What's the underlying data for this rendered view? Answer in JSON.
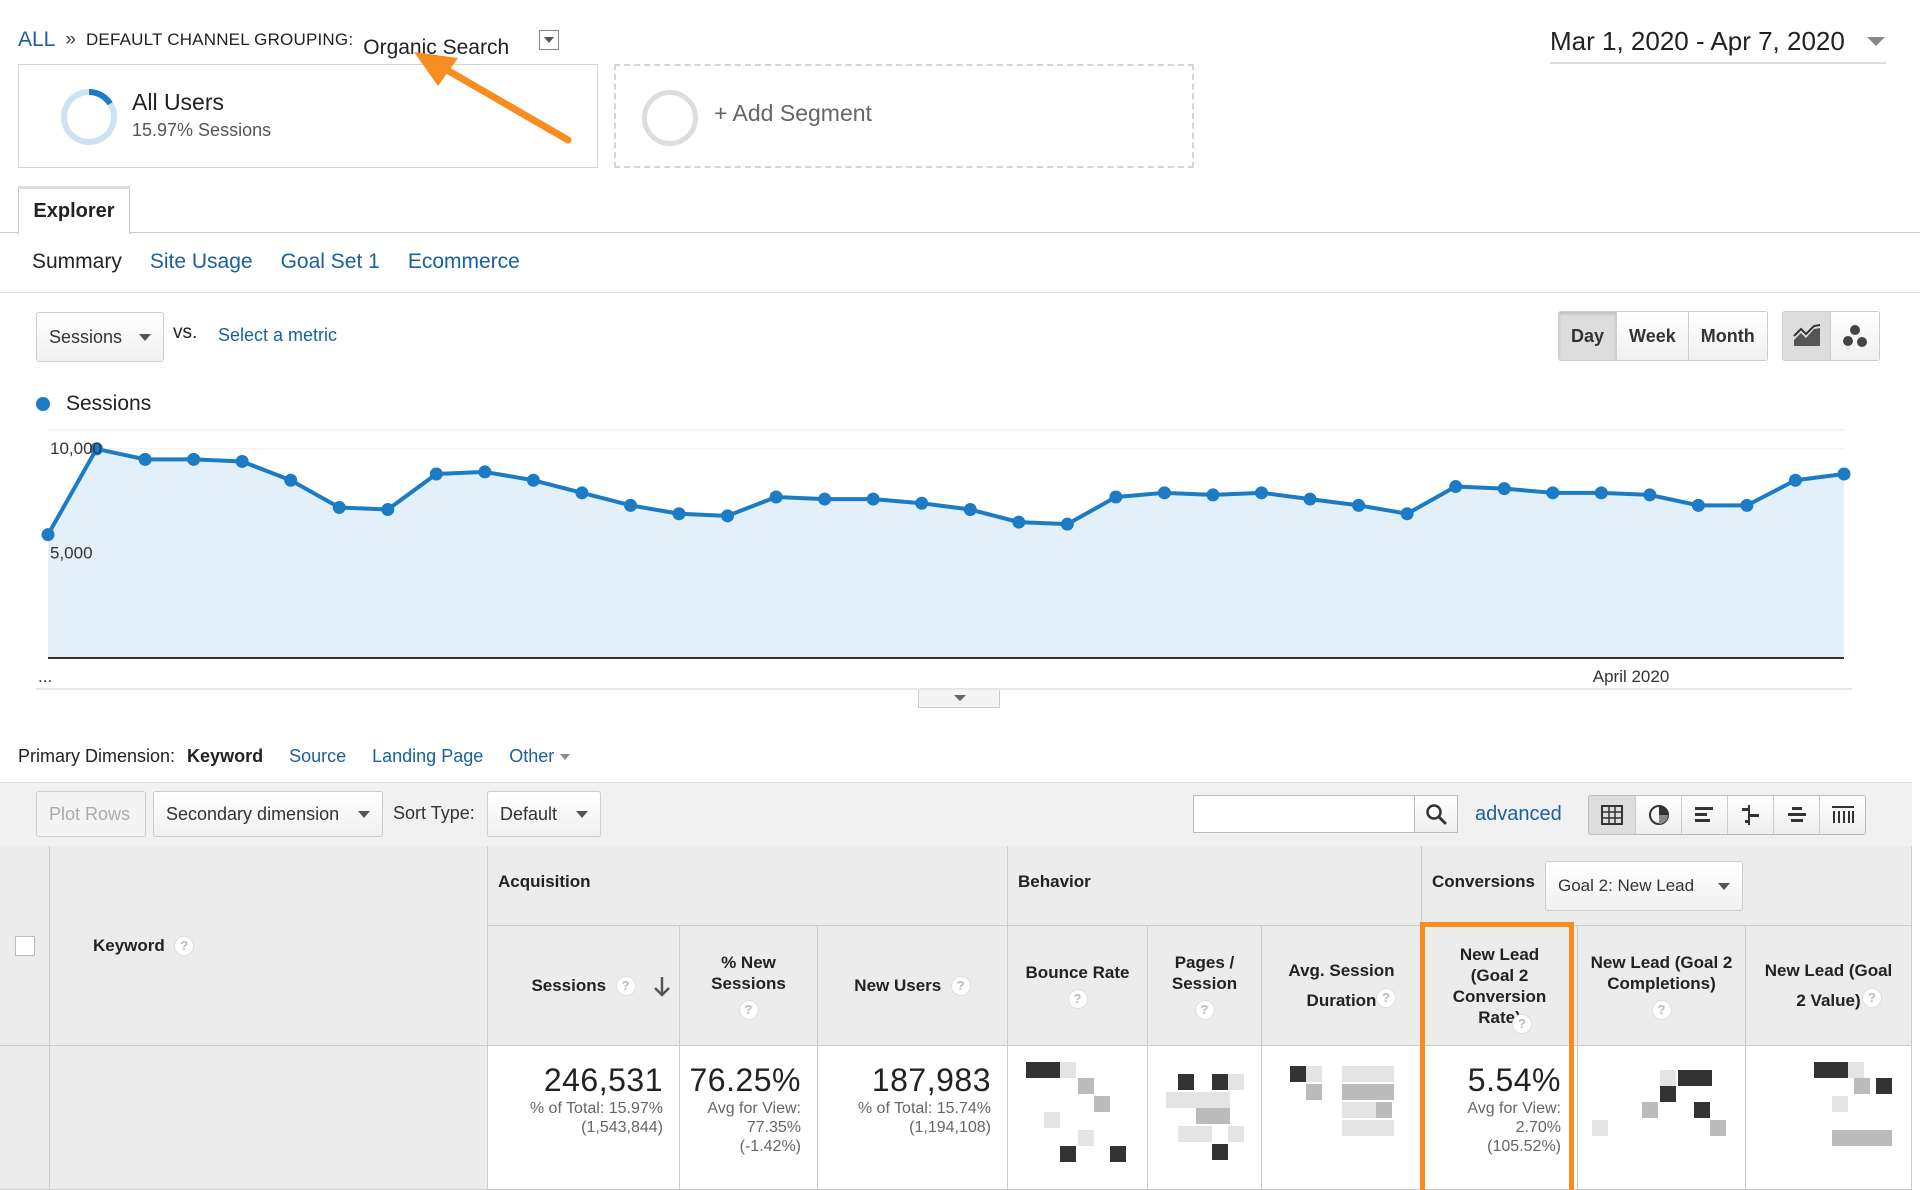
{
  "breadcrumb": {
    "all": "ALL",
    "sep": "»",
    "grouping_label": "DEFAULT CHANNEL GROUPING:",
    "grouping_value": "Organic Search"
  },
  "date_range": "Mar 1, 2020 - Apr 7, 2020",
  "segments": {
    "active": {
      "name": "All Users",
      "detail": "15.97% Sessions",
      "share": 0.1597
    },
    "add_label": "+ Add Segment"
  },
  "explorer_tab": "Explorer",
  "subtabs": [
    "Summary",
    "Site Usage",
    "Goal Set 1",
    "Ecommerce"
  ],
  "metric_selector": {
    "value": "Sessions",
    "vs": "vs.",
    "select_metric": "Select a metric"
  },
  "period_buttons": [
    "Day",
    "Week",
    "Month"
  ],
  "chart_type_icons": [
    "line-chart-icon",
    "motion-chart-icon"
  ],
  "chart_data": {
    "type": "area",
    "series": [
      {
        "name": "Sessions",
        "values": [
          5900,
          10000,
          9500,
          9500,
          9400,
          8500,
          7200,
          7100,
          8800,
          8900,
          8500,
          7900,
          7300,
          6900,
          6800,
          7700,
          7600,
          7600,
          7400,
          7100,
          6500,
          6400,
          7700,
          7900,
          7800,
          7900,
          7600,
          7300,
          6900,
          8200,
          8100,
          7900,
          7900,
          7800,
          7300,
          7300,
          8500,
          8800
        ]
      }
    ],
    "y_ticks": [
      {
        "value": 10000,
        "label": "10,000"
      },
      {
        "value": 5000,
        "label": "5,000"
      }
    ],
    "x_labels": [
      {
        "index": 0,
        "label": "..."
      },
      {
        "index": 31,
        "label": "April 2020"
      }
    ],
    "ylim": [
      0,
      10000
    ],
    "legend": "top-left",
    "color": "#1b7bc4",
    "fill": "#e3eff9"
  },
  "primary_dimension": {
    "label": "Primary Dimension:",
    "current": "Keyword",
    "options": [
      "Source",
      "Landing Page"
    ],
    "other": "Other"
  },
  "toolbar": {
    "plot_rows": "Plot Rows",
    "secondary_dimension": "Secondary dimension",
    "sort_type_label": "Sort Type:",
    "sort_type_value": "Default",
    "search_placeholder": "",
    "advanced": "advanced",
    "view_icons": [
      "table-view-icon",
      "pie-view-icon",
      "bar-view-icon",
      "comparison-view-icon",
      "term-cloud-icon",
      "pivot-view-icon"
    ]
  },
  "table": {
    "keyword_header": "Keyword",
    "groups": {
      "acquisition": "Acquisition",
      "behavior": "Behavior",
      "conversions": "Conversions",
      "goal_select": "Goal 2: New Lead"
    },
    "columns": [
      {
        "name": "Sessions"
      },
      {
        "name": "% New Sessions"
      },
      {
        "name": "New Users"
      },
      {
        "name": "Bounce Rate"
      },
      {
        "name": "Pages / Session"
      },
      {
        "name": "Avg. Session Duration"
      },
      {
        "name": "New Lead (Goal 2 Conversion Rate)"
      },
      {
        "name": "New Lead (Goal 2 Completions)"
      },
      {
        "name": "New Lead (Goal 2 Value)"
      }
    ],
    "totals": {
      "sessions": {
        "value": "246,531",
        "line1": "% of Total: 15.97%",
        "line2": "(1,543,844)"
      },
      "pct_new": {
        "value": "76.25%",
        "line1": "Avg for View:",
        "line2": "77.35%",
        "line3": "(-1.42%)"
      },
      "new_users": {
        "value": "187,983",
        "line1": "% of Total: 15.74%",
        "line2": "(1,194,108)"
      },
      "conv_rate": {
        "value": "5.54%",
        "line1": "Avg for View:",
        "line2": "2.70%",
        "line3": "(105.52%)"
      }
    }
  },
  "highlight_color": "#f78c1f"
}
